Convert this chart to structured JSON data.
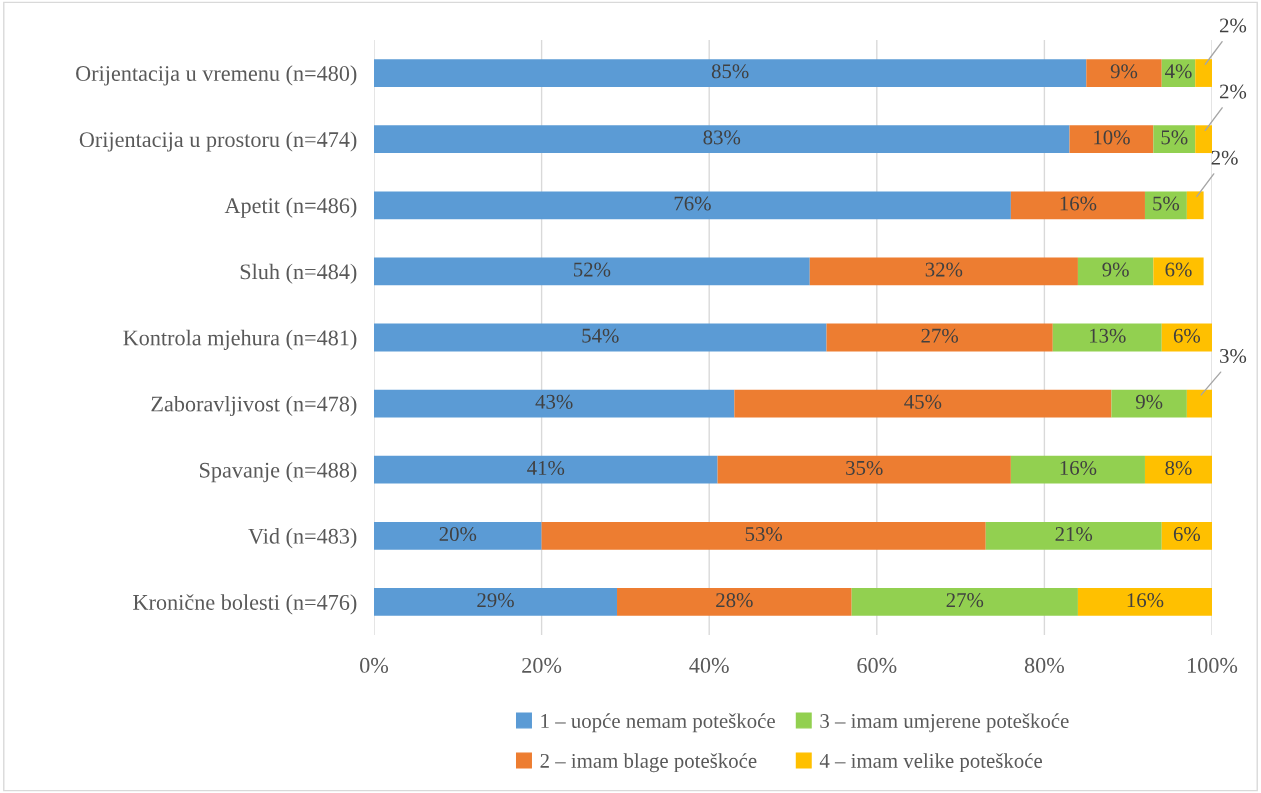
{
  "chart_data": {
    "type": "bar",
    "orientation": "horizontal",
    "stacked": true,
    "categories": [
      "Orijentacija u vremenu (n=480)",
      "Orijentacija u prostoru (n=474)",
      "Apetit (n=486)",
      "Sluh (n=484)",
      "Kontrola mjehura (n=481)",
      "Zaboravljivost (n=478)",
      "Spavanje (n=488)",
      "Vid (n=483)",
      "Kronične bolesti (n=476)"
    ],
    "series": [
      {
        "name": "1 – uopće nemam poteškoće",
        "color": "#5b9bd5",
        "values": [
          85,
          83,
          76,
          52,
          54,
          43,
          41,
          20,
          29
        ],
        "value_labels": [
          "85%",
          "83%",
          "76%",
          "52%",
          "54%",
          "43%",
          "41%",
          "20%",
          "29%"
        ]
      },
      {
        "name": "2 – imam blage poteškoće",
        "color": "#ed7d31",
        "values": [
          9,
          10,
          16,
          32,
          27,
          45,
          35,
          53,
          28
        ],
        "value_labels": [
          "9%",
          "10%",
          "16%",
          "32%",
          "27%",
          "45%",
          "35%",
          "53%",
          "28%"
        ]
      },
      {
        "name": "3 – imam umjerene poteškoće",
        "color": "#92d050",
        "values": [
          4,
          5,
          5,
          9,
          13,
          9,
          16,
          21,
          27
        ],
        "value_labels": [
          "4%",
          "5%",
          "5%",
          "9%",
          "13%",
          "9%",
          "16%",
          "21%",
          "27%"
        ]
      },
      {
        "name": "4 – imam velike poteškoće",
        "color": "#ffc000",
        "values": [
          2,
          2,
          2,
          6,
          6,
          3,
          8,
          6,
          16
        ],
        "value_labels": [
          "2%",
          "2%",
          "2%",
          "6%",
          "6%",
          "3%",
          "8%",
          "6%",
          "16%"
        ]
      }
    ],
    "xlim": [
      0,
      100
    ],
    "xticks": [
      {
        "value": 0,
        "label": "0%"
      },
      {
        "value": 20,
        "label": "20%"
      },
      {
        "value": 40,
        "label": "40%"
      },
      {
        "value": 60,
        "label": "60%"
      },
      {
        "value": 80,
        "label": "80%"
      },
      {
        "value": 100,
        "label": "100%"
      }
    ],
    "grid": "x",
    "legend": "bottom"
  }
}
